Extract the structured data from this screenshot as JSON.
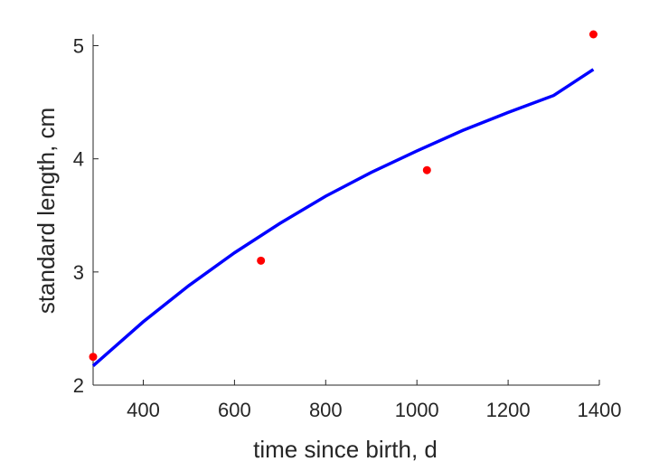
{
  "chart_data": {
    "type": "scatter",
    "xlabel": "time since birth, d",
    "ylabel": "standard length, cm",
    "xlim": [
      290,
      1400
    ],
    "ylim": [
      2,
      5.1
    ],
    "xticks": [
      400,
      600,
      800,
      1000,
      1200,
      1400
    ],
    "yticks": [
      2,
      3,
      4,
      5
    ],
    "grid": false,
    "series": [
      {
        "kind": "points",
        "color": "#ff0000",
        "x": [
          290,
          658,
          1022,
          1387
        ],
        "y": [
          2.25,
          3.1,
          3.9,
          5.1
        ]
      },
      {
        "kind": "line",
        "color": "#0000ff",
        "x": [
          290,
          400,
          500,
          600,
          700,
          800,
          900,
          1000,
          1100,
          1200,
          1300,
          1387
        ],
        "y": [
          2.17,
          2.56,
          2.88,
          3.17,
          3.43,
          3.67,
          3.88,
          4.07,
          4.25,
          4.41,
          4.56,
          4.79
        ]
      }
    ]
  }
}
